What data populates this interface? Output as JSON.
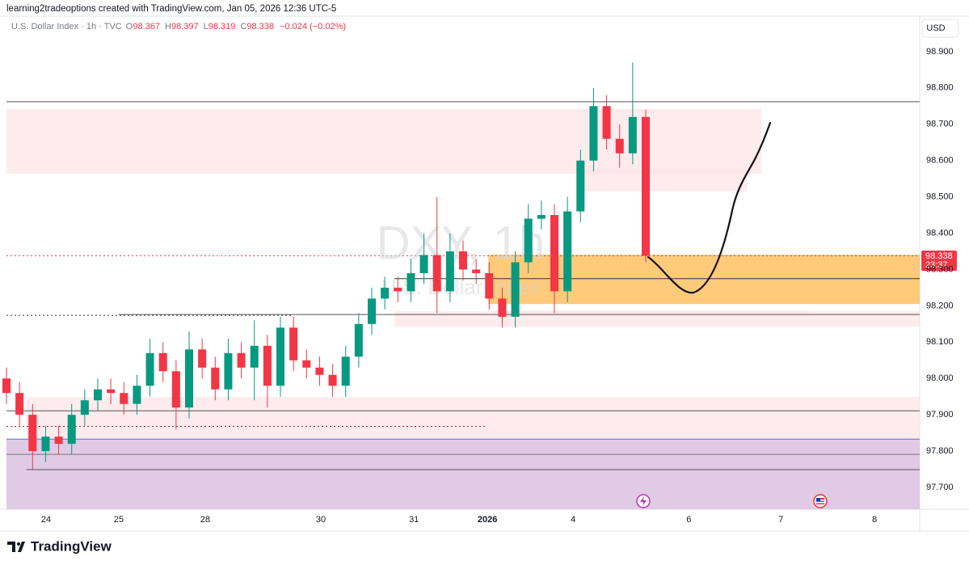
{
  "header": {
    "author_line": "learning2tradeoptions created with TradingView.com, Jan 05, 2026 12:36 UTC-5"
  },
  "legend": {
    "symbol": "U.S. Dollar Index · 1h · TVC",
    "ohlc": [
      {
        "label": "O",
        "value": "98.367"
      },
      {
        "label": "H",
        "value": "98.397"
      },
      {
        "label": "L",
        "value": "98.319"
      },
      {
        "label": "C",
        "value": "98.338"
      }
    ],
    "change": "−0.024 (−0.02%)"
  },
  "currency": "USD",
  "watermark": {
    "ticker": "DXY, 1h",
    "name": "U.S. Dollar Index"
  },
  "price_tag": {
    "value_label": "98.338",
    "time": "23:37"
  },
  "footer": {
    "brand": "TradingView"
  },
  "chart_data": {
    "type": "candlestick",
    "up_color": "#089981",
    "down_color": "#f23645",
    "grid": false,
    "xlim": [
      0,
      210
    ],
    "ylim": [
      97.64,
      98.942
    ],
    "xticks": [
      {
        "value": 9.1,
        "label": "24"
      },
      {
        "value": 25.8,
        "label": "25"
      },
      {
        "value": 45.7,
        "label": "28"
      },
      {
        "value": 72.3,
        "label": "30"
      },
      {
        "value": 93.7,
        "label": "31"
      },
      {
        "value": 110.6,
        "label": "2026"
      },
      {
        "value": 130.3,
        "label": "4"
      },
      {
        "value": 156.9,
        "label": "6"
      },
      {
        "value": 178.1,
        "label": "7"
      },
      {
        "value": 199.6,
        "label": "8"
      }
    ],
    "yticks": [
      {
        "value": 97.7,
        "label": "97.700"
      },
      {
        "value": 97.8,
        "label": "97.800"
      },
      {
        "value": 97.9,
        "label": "97.900"
      },
      {
        "value": 98.0,
        "label": "98.000"
      },
      {
        "value": 98.1,
        "label": "98.100"
      },
      {
        "value": 98.2,
        "label": "98.200"
      },
      {
        "value": 98.3,
        "label": "98.300"
      },
      {
        "value": 98.4,
        "label": "98.400"
      },
      {
        "value": 98.5,
        "label": "98.500"
      },
      {
        "value": 98.6,
        "label": "98.600"
      },
      {
        "value": 98.7,
        "label": "98.700"
      },
      {
        "value": 98.8,
        "label": "98.800"
      },
      {
        "value": 98.9,
        "label": "98.900"
      }
    ],
    "x": [
      0,
      3,
      6,
      9,
      12,
      15,
      18,
      21,
      24,
      27,
      30,
      33,
      36,
      39,
      42,
      45,
      48,
      51,
      54,
      57,
      60,
      63,
      66,
      69,
      72,
      75,
      78,
      81,
      84,
      87,
      90,
      93,
      96,
      99,
      102,
      105,
      108,
      111,
      114,
      117,
      120,
      123,
      126,
      129,
      132,
      135,
      138,
      141,
      144,
      147
    ],
    "open": [
      98.0,
      97.96,
      97.9,
      97.8,
      97.84,
      97.82,
      97.9,
      97.94,
      97.97,
      97.96,
      97.93,
      97.98,
      98.07,
      98.02,
      97.92,
      98.08,
      98.03,
      97.97,
      98.07,
      98.03,
      98.09,
      97.98,
      98.14,
      98.05,
      98.03,
      98.01,
      97.98,
      98.06,
      98.15,
      98.22,
      98.25,
      98.24,
      98.29,
      98.34,
      98.24,
      98.35,
      98.3,
      98.29,
      98.22,
      98.17,
      98.32,
      98.44,
      98.45,
      98.24,
      98.46,
      98.6,
      98.75,
      98.66,
      98.62,
      98.72
    ],
    "high": [
      98.03,
      97.99,
      97.93,
      97.87,
      97.87,
      97.93,
      97.97,
      98.0,
      98.0,
      97.99,
      98.01,
      98.11,
      98.1,
      98.05,
      98.13,
      98.11,
      98.06,
      98.11,
      98.1,
      98.16,
      98.12,
      98.17,
      98.17,
      98.08,
      98.06,
      98.04,
      98.09,
      98.18,
      98.25,
      98.28,
      98.28,
      98.33,
      98.4,
      98.5,
      98.4,
      98.38,
      98.33,
      98.32,
      98.25,
      98.35,
      98.48,
      98.49,
      98.48,
      98.5,
      98.63,
      98.8,
      98.78,
      98.7,
      98.87,
      98.74
    ],
    "low": [
      97.93,
      97.87,
      97.75,
      97.77,
      97.79,
      97.79,
      97.87,
      97.91,
      97.93,
      97.9,
      97.9,
      97.95,
      97.99,
      97.86,
      97.89,
      98.0,
      97.94,
      97.94,
      98.0,
      97.94,
      97.92,
      97.95,
      98.02,
      98.0,
      97.98,
      97.95,
      97.95,
      98.03,
      98.12,
      98.19,
      98.21,
      98.21,
      98.26,
      98.18,
      98.21,
      98.27,
      98.26,
      98.19,
      98.14,
      98.14,
      98.29,
      98.41,
      98.18,
      98.21,
      98.43,
      98.57,
      98.63,
      98.58,
      98.59,
      98.32
    ],
    "close": [
      97.96,
      97.9,
      97.8,
      97.84,
      97.82,
      97.9,
      97.94,
      97.97,
      97.96,
      97.93,
      97.98,
      98.07,
      98.02,
      97.92,
      98.08,
      98.03,
      97.97,
      98.07,
      98.03,
      98.09,
      97.98,
      98.14,
      98.05,
      98.03,
      98.01,
      97.98,
      98.06,
      98.15,
      98.22,
      98.25,
      98.24,
      98.29,
      98.34,
      98.24,
      98.35,
      98.3,
      98.29,
      98.22,
      98.17,
      98.32,
      98.44,
      98.45,
      98.24,
      98.46,
      98.6,
      98.75,
      98.66,
      98.62,
      98.72,
      98.338
    ],
    "zones": [
      {
        "x": [
          0,
          210
        ],
        "y": [
          97.64,
          97.833
        ],
        "color": "#d5b8dc"
      },
      {
        "x": [
          4.6,
          210
        ],
        "y": [
          97.833,
          97.949
        ],
        "color": "#fde4e7"
      },
      {
        "x": [
          0,
          173.6
        ],
        "y": [
          98.564,
          98.742
        ],
        "color": "#fde4e7"
      },
      {
        "x": [
          132.7,
          170.3
        ],
        "y": [
          98.515,
          98.577
        ],
        "color": "#fde4e7"
      },
      {
        "x": [
          89.2,
          210
        ],
        "y": [
          98.143,
          98.185
        ],
        "color": "#fde4e7"
      },
      {
        "x": [
          111.9,
          184.4
        ],
        "y": [
          98.176,
          98.187
        ],
        "color": "#fde4e7"
      },
      {
        "x": [
          110.8,
          210
        ],
        "y": [
          98.205,
          98.341
        ],
        "color": "#ffb84d"
      }
    ],
    "levels": [
      {
        "x": [
          0,
          210
        ],
        "value": 98.762,
        "color": "#555555",
        "style": "solid"
      },
      {
        "x": [
          89.2,
          210
        ],
        "value": 98.275,
        "color": "#333333",
        "style": "solid"
      },
      {
        "x": [
          25.8,
          210
        ],
        "value": 98.176,
        "color": "#555555",
        "style": "solid"
      },
      {
        "x": [
          0,
          66
        ],
        "value": 98.174,
        "color": "#333333",
        "style": "dotted"
      },
      {
        "x": [
          0,
          210
        ],
        "value": 97.911,
        "color": "#555555",
        "style": "solid"
      },
      {
        "x": [
          0,
          110
        ],
        "value": 97.868,
        "color": "#b02030",
        "style": "dotted"
      },
      {
        "x": [
          0,
          210
        ],
        "value": 97.833,
        "color": "#5b6fd6",
        "style": "solid"
      },
      {
        "x": [
          0,
          210
        ],
        "value": 97.791,
        "color": "#777777",
        "style": "solid"
      },
      {
        "x": [
          4.6,
          210
        ],
        "value": 97.749,
        "color": "#555555",
        "style": "solid"
      },
      {
        "x": [
          0,
          210
        ],
        "value": 98.338,
        "color": "#f23645",
        "style": "dotted"
      }
    ]
  }
}
